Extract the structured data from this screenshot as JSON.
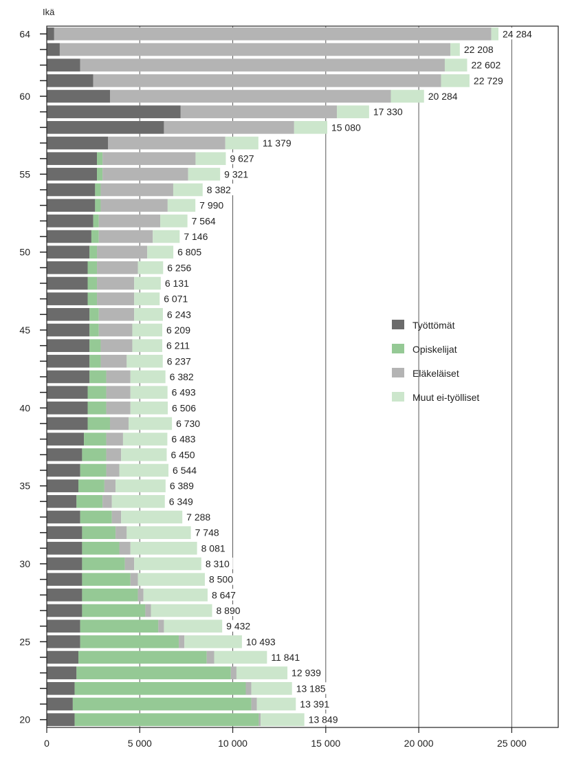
{
  "chart_data": {
    "type": "bar",
    "orientation": "horizontal",
    "stacked": true,
    "ylabel": "Ikä",
    "xlim": [
      0,
      27500
    ],
    "xticks": [
      0,
      5000,
      10000,
      15000,
      20000,
      25000
    ],
    "xtick_labels": [
      "0",
      "5 000",
      "10 000",
      "15 000",
      "20 000",
      "25 000"
    ],
    "ytick_labels": [
      "20",
      "25",
      "30",
      "35",
      "40",
      "45",
      "50",
      "55",
      "60",
      "64"
    ],
    "grid": "vertical",
    "legend_position": "right-middle",
    "categories": [
      64,
      63,
      62,
      61,
      60,
      59,
      58,
      57,
      56,
      55,
      54,
      53,
      52,
      51,
      50,
      49,
      48,
      47,
      46,
      45,
      44,
      43,
      42,
      41,
      40,
      39,
      38,
      37,
      36,
      35,
      34,
      33,
      32,
      31,
      30,
      29,
      28,
      27,
      26,
      25,
      24,
      23,
      22,
      21,
      20
    ],
    "totals": [
      24284,
      22208,
      22602,
      22729,
      20284,
      17330,
      15080,
      11379,
      9627,
      9321,
      8382,
      7990,
      7564,
      7146,
      6805,
      6256,
      6131,
      6071,
      6243,
      6209,
      6211,
      6237,
      6382,
      6493,
      6506,
      6730,
      6483,
      6450,
      6544,
      6389,
      6349,
      7288,
      7748,
      8081,
      8310,
      8500,
      8647,
      8890,
      9432,
      10493,
      11841,
      12939,
      13185,
      13391,
      13849
    ],
    "total_labels": [
      "24 284",
      "22 208",
      "22 602",
      "22 729",
      "20 284",
      "17 330",
      "15 080",
      "11 379",
      "9 627",
      "9 321",
      "8 382",
      "7 990",
      "7 564",
      "7 146",
      "6 805",
      "6 256",
      "6 131",
      "6 071",
      "6 243",
      "6 209",
      "6 211",
      "6 237",
      "6 382",
      "6 493",
      "6 506",
      "6 730",
      "6 483",
      "6 450",
      "6 544",
      "6 389",
      "6 349",
      "7 288",
      "7 748",
      "8 081",
      "8 310",
      "8 500",
      "8 647",
      "8 890",
      "9 432",
      "10 493",
      "11 841",
      "12 939",
      "13 185",
      "13 391",
      "13 849"
    ],
    "series": [
      {
        "name": "Työttömät",
        "color": "#6b6b6b",
        "values": [
          400,
          700,
          1800,
          2500,
          3400,
          7200,
          6300,
          3300,
          2700,
          2700,
          2600,
          2600,
          2500,
          2400,
          2300,
          2200,
          2200,
          2200,
          2300,
          2300,
          2300,
          2300,
          2300,
          2200,
          2200,
          2200,
          2000,
          1900,
          1800,
          1700,
          1600,
          1800,
          1900,
          1900,
          1900,
          1900,
          1900,
          1900,
          1800,
          1800,
          1700,
          1600,
          1500,
          1400,
          1500
        ]
      },
      {
        "name": "Opiskelijat",
        "color": "#95c995",
        "values": [
          0,
          0,
          0,
          0,
          0,
          0,
          0,
          0,
          300,
          300,
          300,
          300,
          300,
          400,
          400,
          500,
          500,
          500,
          500,
          500,
          600,
          600,
          900,
          1000,
          1000,
          1200,
          1200,
          1300,
          1400,
          1400,
          1400,
          1700,
          1800,
          2000,
          2300,
          2600,
          3000,
          3400,
          4200,
          5300,
          6900,
          8300,
          9200,
          9600,
          9900
        ]
      },
      {
        "name": "Eläkeläiset",
        "color": "#b4b4b4",
        "values": [
          23500,
          21000,
          19600,
          18700,
          15100,
          8400,
          7000,
          6300,
          5000,
          4600,
          3900,
          3600,
          3300,
          2900,
          2700,
          2200,
          2000,
          2000,
          1900,
          1800,
          1700,
          1400,
          1300,
          1300,
          1300,
          1000,
          900,
          800,
          700,
          600,
          500,
          500,
          600,
          600,
          500,
          400,
          300,
          300,
          300,
          300,
          400,
          300,
          300,
          300,
          100
        ]
      },
      {
        "name": "Muut ei-työlliset",
        "color": "#cce6cc",
        "values": [
          384,
          508,
          1202,
          1529,
          1784,
          1730,
          1780,
          1779,
          1627,
          1721,
          1582,
          1490,
          1464,
          1446,
          1405,
          1356,
          1431,
          1371,
          1543,
          1609,
          1611,
          1937,
          1882,
          1993,
          2006,
          2330,
          2383,
          2450,
          2644,
          2689,
          2849,
          3288,
          3448,
          3581,
          3610,
          3600,
          3447,
          3290,
          3132,
          3093,
          2841,
          2739,
          2185,
          2091,
          2349
        ]
      }
    ]
  }
}
